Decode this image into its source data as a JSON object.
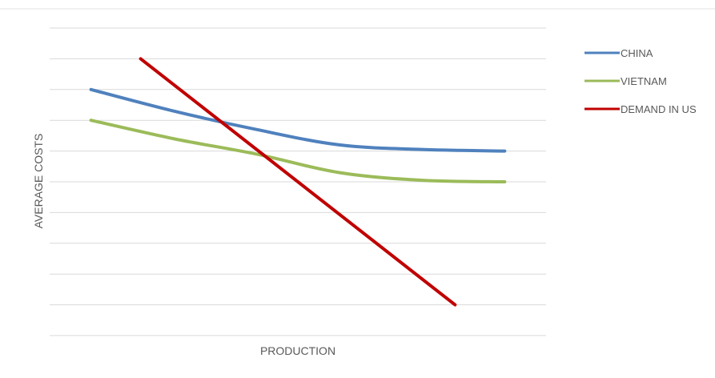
{
  "chart_data": {
    "type": "line",
    "title": "",
    "xlabel": "PRODUCTION",
    "ylabel": "AVERAGE COSTS",
    "ylim": [
      0,
      10
    ],
    "grid": true,
    "legend_position": "right",
    "series": [
      {
        "name": "CHINA",
        "color": "#4f81bd",
        "points": [
          {
            "x": 1,
            "y": 8.0
          },
          {
            "x": 2,
            "y": 7.3
          },
          {
            "x": 3,
            "y": 6.7
          },
          {
            "x": 4,
            "y": 6.2
          },
          {
            "x": 5,
            "y": 6.05
          },
          {
            "x": 6,
            "y": 6.0
          }
        ]
      },
      {
        "name": "VIETNAM",
        "color": "#9bbb59",
        "points": [
          {
            "x": 1,
            "y": 7.0
          },
          {
            "x": 2,
            "y": 6.4
          },
          {
            "x": 3,
            "y": 5.9
          },
          {
            "x": 4,
            "y": 5.3
          },
          {
            "x": 5,
            "y": 5.05
          },
          {
            "x": 6,
            "y": 5.0
          }
        ]
      },
      {
        "name": "DEMAND IN US",
        "color": "#c00000",
        "points": [
          {
            "x": 1.6,
            "y": 9.0
          },
          {
            "x": 5.4,
            "y": 1.0
          }
        ]
      }
    ]
  }
}
